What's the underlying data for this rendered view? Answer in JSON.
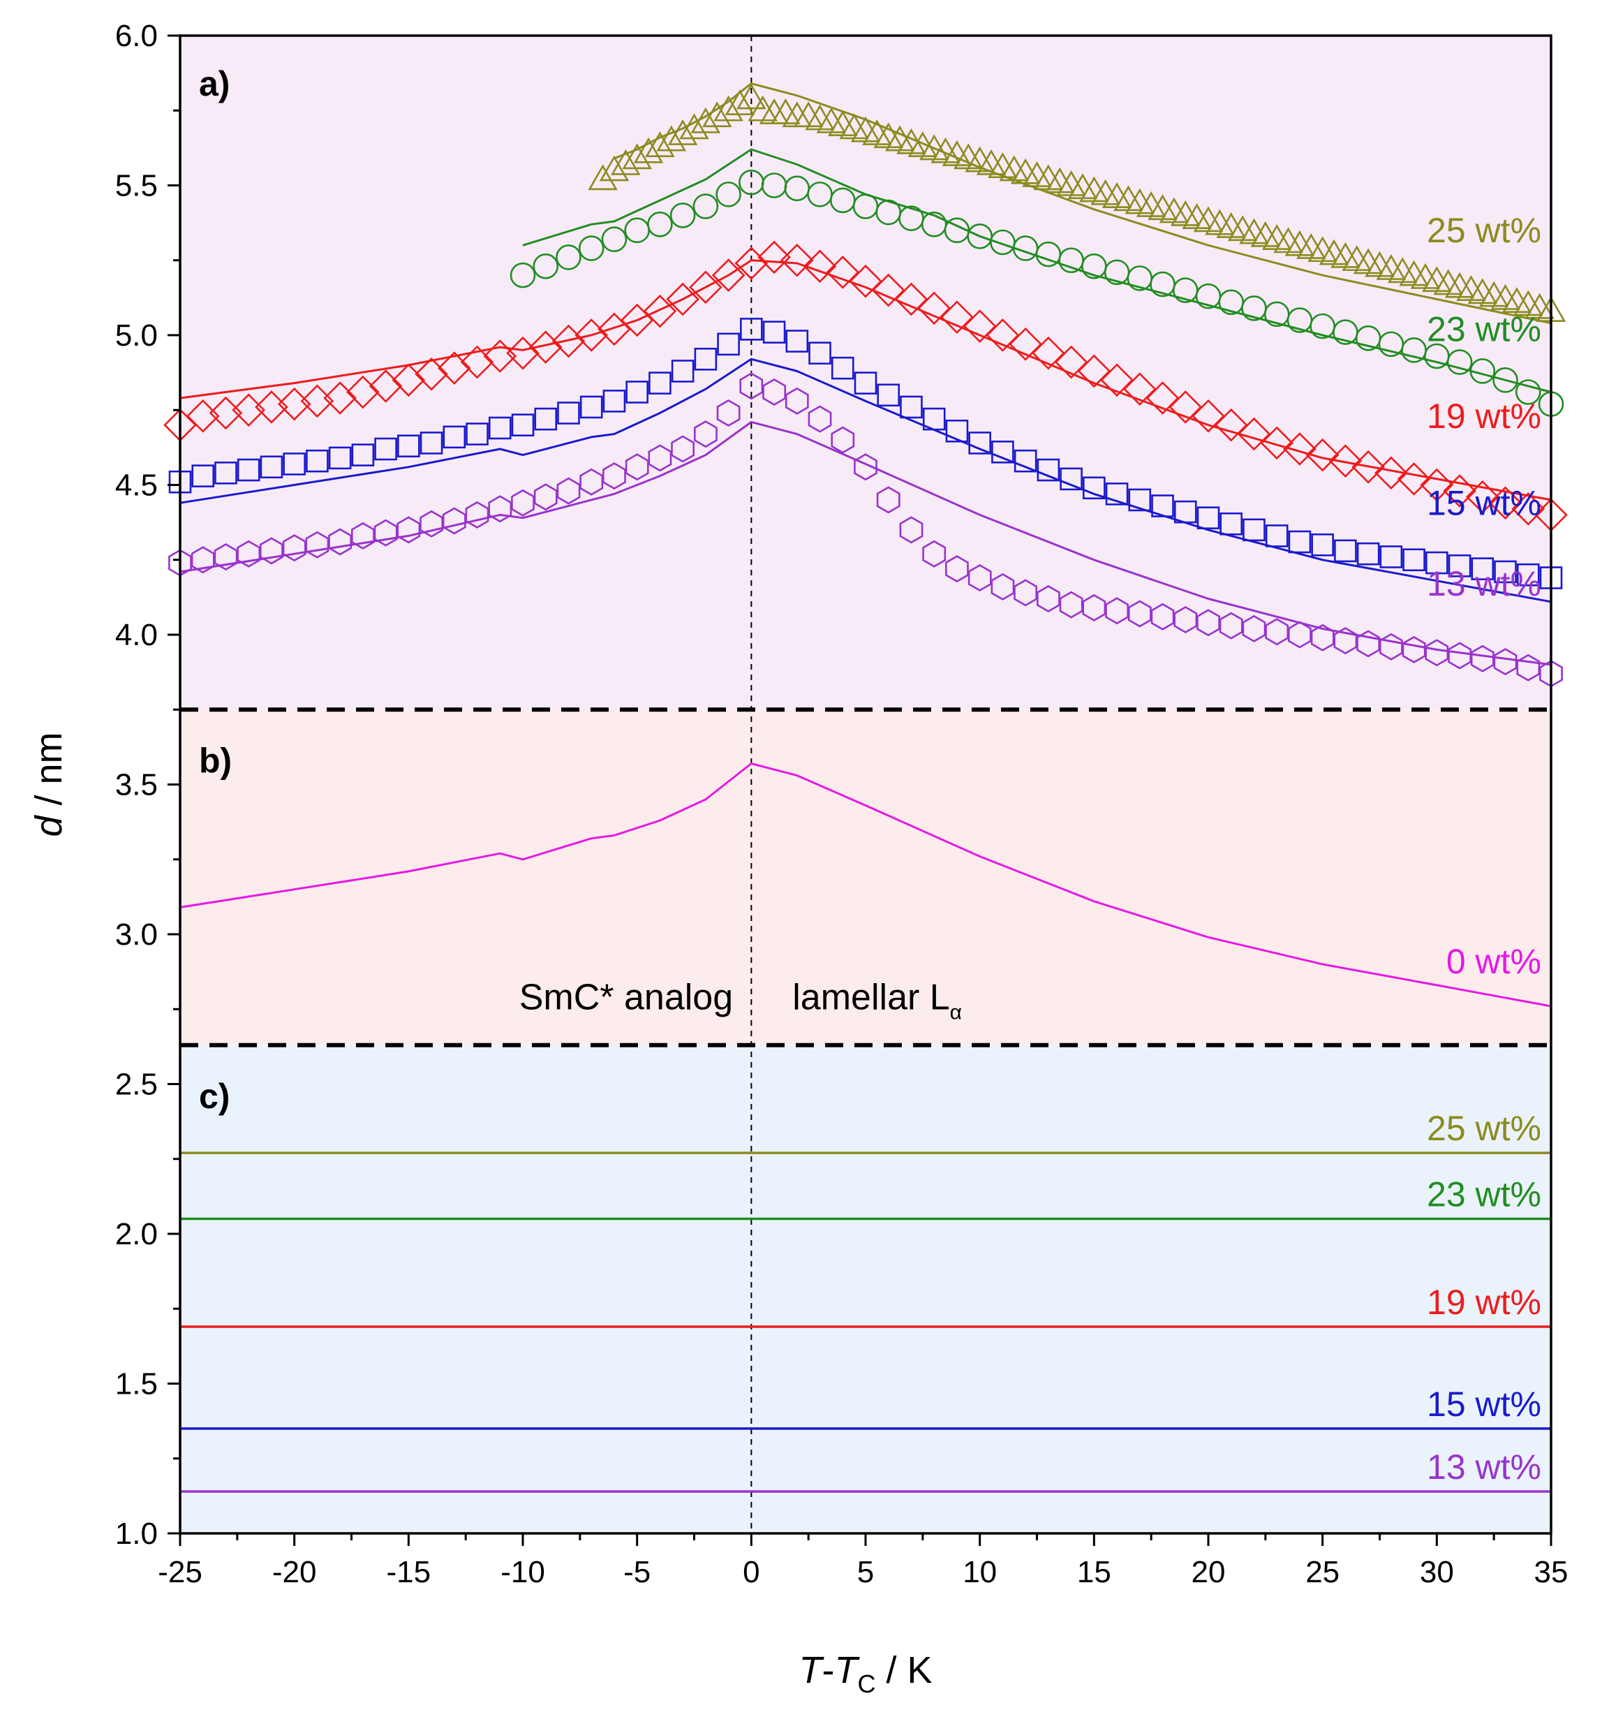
{
  "chart_data": {
    "type": "line",
    "title": "",
    "xlabel": "T-T_C / K",
    "ylabel": "d / nm",
    "xlim": [
      -25,
      35
    ],
    "ylim": [
      1.0,
      6.0
    ],
    "xticks": [
      "-25",
      "-20",
      "-15",
      "-10",
      "-5",
      "0",
      "5",
      "10",
      "15",
      "20",
      "25",
      "30",
      "35"
    ],
    "yticks": [
      "1.0",
      "1.5",
      "2.0",
      "2.5",
      "3.0",
      "3.5",
      "4.0",
      "4.5",
      "5.0",
      "5.5",
      "6.0"
    ],
    "axis_title": {
      "x_main": "T",
      "x_dash": "-",
      "x_sub_main": "T",
      "x_subscript": "C",
      "x_unit": " / K",
      "y_var": "d",
      "y_unit": " / nm"
    },
    "panels": [
      {
        "label": "a)",
        "y_range": [
          3.75,
          6.0
        ],
        "background": "#f7ebf8"
      },
      {
        "label": "b)",
        "y_range": [
          2.63,
          3.75
        ],
        "background": "#fcecec"
      },
      {
        "label": "c)",
        "y_range": [
          1.0,
          2.63
        ],
        "background": "#eaf3fb"
      }
    ],
    "region_labels": {
      "left": "SmC* analog",
      "right_main": "lamellar L",
      "right_subscript": "α"
    },
    "panel_a": {
      "series": [
        {
          "name": "25 wt%",
          "color": "#8b8b1e",
          "marker": "triangle",
          "points_x": [
            -6.5,
            -6,
            -5.5,
            -5,
            -4.5,
            -4,
            -3.5,
            -3,
            -2.5,
            -2,
            -1.5,
            -1,
            -0.5,
            0,
            0.5,
            1,
            1.5,
            2,
            2.5,
            3,
            3.5,
            4,
            4.5,
            5,
            5.5,
            6,
            6.5,
            7,
            7.5,
            8,
            8.5,
            9,
            9.5,
            10,
            10.5,
            11,
            11.5,
            12,
            12.5,
            13,
            13.5,
            14,
            14.5,
            15,
            15.5,
            16,
            16.5,
            17,
            17.5,
            18,
            18.5,
            19,
            19.5,
            20,
            20.5,
            21,
            21.5,
            22,
            22.5,
            23,
            23.5,
            24,
            24.5,
            25,
            25.5,
            26,
            26.5,
            27,
            27.5,
            28,
            28.5,
            29,
            29.5,
            30,
            30.5,
            31,
            31.5,
            32,
            32.5,
            33,
            33.5,
            34,
            34.5,
            35
          ],
          "points_y": [
            5.52,
            5.55,
            5.57,
            5.59,
            5.61,
            5.63,
            5.65,
            5.67,
            5.69,
            5.71,
            5.73,
            5.75,
            5.77,
            5.79,
            5.75,
            5.74,
            5.74,
            5.73,
            5.73,
            5.72,
            5.71,
            5.7,
            5.69,
            5.68,
            5.67,
            5.66,
            5.65,
            5.64,
            5.63,
            5.62,
            5.61,
            5.6,
            5.59,
            5.58,
            5.57,
            5.56,
            5.55,
            5.54,
            5.53,
            5.52,
            5.51,
            5.5,
            5.49,
            5.48,
            5.47,
            5.46,
            5.45,
            5.44,
            5.43,
            5.42,
            5.41,
            5.4,
            5.39,
            5.38,
            5.37,
            5.36,
            5.35,
            5.34,
            5.33,
            5.32,
            5.31,
            5.3,
            5.29,
            5.28,
            5.27,
            5.26,
            5.25,
            5.24,
            5.23,
            5.22,
            5.21,
            5.2,
            5.19,
            5.18,
            5.17,
            5.16,
            5.15,
            5.14,
            5.13,
            5.12,
            5.11,
            5.1,
            5.09,
            5.08
          ],
          "line_x": [
            -6,
            -5,
            -4,
            -3,
            -2,
            -1,
            0,
            2,
            5,
            10,
            15,
            20,
            25,
            30,
            35
          ],
          "line_y": [
            5.59,
            5.62,
            5.66,
            5.69,
            5.73,
            5.78,
            5.84,
            5.8,
            5.72,
            5.56,
            5.42,
            5.3,
            5.2,
            5.12,
            5.04
          ]
        },
        {
          "name": "23 wt%",
          "color": "#218d21",
          "marker": "circle",
          "points_x": [
            -10,
            -9,
            -8,
            -7,
            -6,
            -5,
            -4,
            -3,
            -2,
            -1,
            0,
            1,
            2,
            3,
            4,
            5,
            6,
            7,
            8,
            9,
            10,
            11,
            12,
            13,
            14,
            15,
            16,
            17,
            18,
            19,
            20,
            21,
            22,
            23,
            24,
            25,
            26,
            27,
            28,
            29,
            30,
            31,
            32,
            33,
            34,
            35
          ],
          "points_y": [
            5.2,
            5.23,
            5.26,
            5.29,
            5.32,
            5.35,
            5.37,
            5.4,
            5.43,
            5.47,
            5.51,
            5.5,
            5.49,
            5.47,
            5.45,
            5.43,
            5.41,
            5.39,
            5.37,
            5.35,
            5.33,
            5.31,
            5.29,
            5.27,
            5.25,
            5.23,
            5.21,
            5.19,
            5.17,
            5.15,
            5.13,
            5.11,
            5.09,
            5.07,
            5.05,
            5.03,
            5.01,
            4.99,
            4.97,
            4.95,
            4.93,
            4.91,
            4.88,
            4.85,
            4.81,
            4.77
          ],
          "line_x": [
            -10,
            -7,
            -6,
            -4,
            -2,
            0,
            2,
            5,
            8,
            10,
            15,
            20,
            25,
            30,
            35
          ],
          "line_y": [
            5.3,
            5.37,
            5.38,
            5.45,
            5.52,
            5.62,
            5.57,
            5.47,
            5.4,
            5.33,
            5.2,
            5.1,
            5.0,
            4.91,
            4.81
          ]
        },
        {
          "name": "19 wt%",
          "color": "#ee1c1c",
          "marker": "diamond",
          "points_x": [
            -25,
            -24,
            -23,
            -22,
            -21,
            -20,
            -19,
            -18,
            -17,
            -16,
            -15,
            -14,
            -13,
            -12,
            -11,
            -10,
            -9,
            -8,
            -7,
            -6,
            -5,
            -4,
            -3,
            -2,
            -1,
            0,
            1,
            2,
            3,
            4,
            5,
            6,
            7,
            8,
            9,
            10,
            11,
            12,
            13,
            14,
            15,
            16,
            17,
            18,
            19,
            20,
            21,
            22,
            23,
            24,
            25,
            26,
            27,
            28,
            29,
            30,
            31,
            32,
            33,
            34,
            35
          ],
          "points_y": [
            4.7,
            4.73,
            4.74,
            4.75,
            4.76,
            4.77,
            4.78,
            4.79,
            4.81,
            4.83,
            4.85,
            4.87,
            4.89,
            4.91,
            4.93,
            4.94,
            4.96,
            4.98,
            5.0,
            5.02,
            5.05,
            5.08,
            5.12,
            5.16,
            5.2,
            5.24,
            5.26,
            5.25,
            5.23,
            5.21,
            5.18,
            5.15,
            5.12,
            5.09,
            5.06,
            5.03,
            5.0,
            4.97,
            4.94,
            4.91,
            4.88,
            4.85,
            4.82,
            4.79,
            4.76,
            4.73,
            4.7,
            4.67,
            4.64,
            4.62,
            4.6,
            4.58,
            4.56,
            4.54,
            4.52,
            4.5,
            4.48,
            4.46,
            4.44,
            4.42,
            4.4
          ],
          "line_x": [
            -25,
            -20,
            -15,
            -11,
            -10,
            -7,
            -5,
            -3,
            -1,
            0,
            2,
            5,
            10,
            15,
            20,
            25,
            30,
            35
          ],
          "line_y": [
            4.79,
            4.84,
            4.9,
            4.96,
            4.95,
            5.0,
            5.05,
            5.12,
            5.2,
            5.25,
            5.24,
            5.16,
            5.0,
            4.84,
            4.7,
            4.59,
            4.52,
            4.45
          ]
        },
        {
          "name": "15 wt%",
          "color": "#1a1acc",
          "marker": "square",
          "points_x": [
            -25,
            -24,
            -23,
            -22,
            -21,
            -20,
            -19,
            -18,
            -17,
            -16,
            -15,
            -14,
            -13,
            -12,
            -11,
            -10,
            -9,
            -8,
            -7,
            -6,
            -5,
            -4,
            -3,
            -2,
            -1,
            0,
            1,
            2,
            3,
            4,
            5,
            6,
            7,
            8,
            9,
            10,
            11,
            12,
            13,
            14,
            15,
            16,
            17,
            18,
            19,
            20,
            21,
            22,
            23,
            24,
            25,
            26,
            27,
            28,
            29,
            30,
            31,
            32,
            33,
            34,
            35
          ],
          "points_y": [
            4.51,
            4.53,
            4.54,
            4.55,
            4.56,
            4.57,
            4.58,
            4.59,
            4.6,
            4.62,
            4.63,
            4.64,
            4.66,
            4.67,
            4.69,
            4.7,
            4.72,
            4.74,
            4.76,
            4.78,
            4.81,
            4.84,
            4.88,
            4.92,
            4.97,
            5.02,
            5.01,
            4.98,
            4.94,
            4.89,
            4.84,
            4.8,
            4.76,
            4.72,
            4.68,
            4.64,
            4.61,
            4.58,
            4.55,
            4.52,
            4.49,
            4.47,
            4.45,
            4.43,
            4.41,
            4.39,
            4.37,
            4.35,
            4.33,
            4.31,
            4.3,
            4.28,
            4.27,
            4.26,
            4.25,
            4.24,
            4.23,
            4.22,
            4.21,
            4.2,
            4.19
          ],
          "line_x": [
            -25,
            -20,
            -15,
            -11,
            -10,
            -7,
            -6,
            -4,
            -2,
            0,
            2,
            5,
            10,
            15,
            20,
            25,
            30,
            35
          ],
          "line_y": [
            4.44,
            4.5,
            4.56,
            4.62,
            4.6,
            4.66,
            4.67,
            4.74,
            4.82,
            4.92,
            4.88,
            4.78,
            4.62,
            4.47,
            4.35,
            4.25,
            4.18,
            4.11
          ]
        },
        {
          "name": "13 wt%",
          "color": "#9933cc",
          "marker": "hexagon",
          "points_x": [
            -25,
            -24,
            -23,
            -22,
            -21,
            -20,
            -19,
            -18,
            -17,
            -16,
            -15,
            -14,
            -13,
            -12,
            -11,
            -10,
            -9,
            -8,
            -7,
            -6,
            -5,
            -4,
            -3,
            -2,
            -1,
            0,
            1,
            2,
            3,
            4,
            5,
            6,
            7,
            8,
            9,
            10,
            11,
            12,
            13,
            14,
            15,
            16,
            17,
            18,
            19,
            20,
            21,
            22,
            23,
            24,
            25,
            26,
            27,
            28,
            29,
            30,
            31,
            32,
            33,
            34,
            35
          ],
          "points_y": [
            4.24,
            4.25,
            4.26,
            4.27,
            4.28,
            4.29,
            4.3,
            4.31,
            4.33,
            4.34,
            4.35,
            4.37,
            4.38,
            4.4,
            4.42,
            4.44,
            4.46,
            4.48,
            4.51,
            4.53,
            4.56,
            4.59,
            4.62,
            4.67,
            4.74,
            4.83,
            4.81,
            4.78,
            4.72,
            4.65,
            4.56,
            4.45,
            4.35,
            4.27,
            4.22,
            4.19,
            4.16,
            4.14,
            4.12,
            4.1,
            4.09,
            4.08,
            4.07,
            4.06,
            4.05,
            4.04,
            4.03,
            4.02,
            4.01,
            4.0,
            3.99,
            3.98,
            3.97,
            3.96,
            3.95,
            3.94,
            3.93,
            3.92,
            3.91,
            3.89,
            3.87
          ],
          "line_x": [
            -25,
            -20,
            -15,
            -11,
            -10,
            -7,
            -6,
            -4,
            -2,
            0,
            2,
            5,
            10,
            15,
            20,
            25,
            30,
            35
          ],
          "line_y": [
            4.21,
            4.27,
            4.33,
            4.4,
            4.39,
            4.45,
            4.47,
            4.53,
            4.6,
            4.71,
            4.67,
            4.57,
            4.4,
            4.25,
            4.12,
            4.02,
            3.95,
            3.9
          ]
        }
      ]
    },
    "panel_b": {
      "series": [
        {
          "name": "0 wt%",
          "color": "#e619e6",
          "line_x": [
            -25,
            -20,
            -15,
            -11,
            -10,
            -7,
            -6,
            -4,
            -2,
            0,
            2,
            5,
            10,
            15,
            20,
            25,
            30,
            35
          ],
          "line_y": [
            3.09,
            3.15,
            3.21,
            3.27,
            3.25,
            3.32,
            3.33,
            3.38,
            3.45,
            3.57,
            3.53,
            3.43,
            3.26,
            3.11,
            2.99,
            2.9,
            2.83,
            2.76
          ]
        }
      ]
    },
    "panel_c": {
      "series": [
        {
          "name": "25 wt%",
          "color": "#8b8b1e",
          "value": 2.27
        },
        {
          "name": "23 wt%",
          "color": "#218d21",
          "value": 2.05
        },
        {
          "name": "19 wt%",
          "color": "#ee1c1c",
          "value": 1.69
        },
        {
          "name": "15 wt%",
          "color": "#1a1acc",
          "value": 1.35
        },
        {
          "name": "13 wt%",
          "color": "#9933cc",
          "value": 1.14
        }
      ]
    }
  }
}
